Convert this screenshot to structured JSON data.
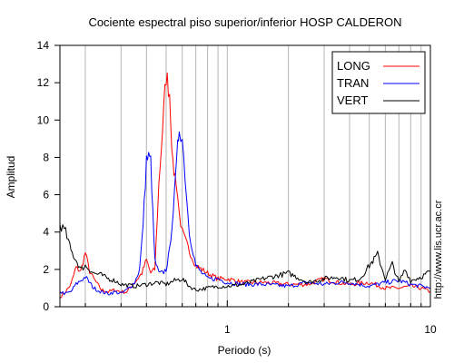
{
  "chart_data": {
    "type": "line",
    "title": "Cociente espectral piso superior/inferior  HOSP CALDERON",
    "xlabel": "Periodo (s)",
    "ylabel": "Amplitud",
    "xscale": "log",
    "xlim": [
      0.15,
      10
    ],
    "ylim": [
      0,
      14
    ],
    "x_tick_labels": [
      {
        "value": 1,
        "label": "1"
      },
      {
        "value": 10,
        "label": "10"
      }
    ],
    "y_ticks": [
      0,
      2,
      4,
      6,
      8,
      10,
      12,
      14
    ],
    "grid": "vertical",
    "legend_position": "top-right",
    "side_note": "http://www.lis.ucr.ac.cr",
    "series": [
      {
        "name": "LONG",
        "color": "#ff0000",
        "points": [
          [
            0.15,
            0.5
          ],
          [
            0.16,
            0.8
          ],
          [
            0.17,
            1.2
          ],
          [
            0.18,
            2.1
          ],
          [
            0.19,
            1.9
          ],
          [
            0.2,
            2.9
          ],
          [
            0.21,
            1.9
          ],
          [
            0.22,
            1.5
          ],
          [
            0.24,
            0.9
          ],
          [
            0.26,
            0.8
          ],
          [
            0.28,
            0.9
          ],
          [
            0.3,
            0.8
          ],
          [
            0.32,
            0.8
          ],
          [
            0.35,
            1.3
          ],
          [
            0.38,
            1.8
          ],
          [
            0.4,
            2.5
          ],
          [
            0.42,
            1.8
          ],
          [
            0.44,
            2.0
          ],
          [
            0.46,
            6.5
          ],
          [
            0.48,
            9.5
          ],
          [
            0.5,
            12.4
          ],
          [
            0.52,
            11.5
          ],
          [
            0.54,
            7.5
          ],
          [
            0.56,
            6.8
          ],
          [
            0.58,
            5.0
          ],
          [
            0.6,
            4.0
          ],
          [
            0.65,
            3.0
          ],
          [
            0.7,
            2.2
          ],
          [
            0.75,
            2.0
          ],
          [
            0.8,
            1.8
          ],
          [
            0.9,
            1.5
          ],
          [
            1.0,
            1.5
          ],
          [
            1.2,
            1.3
          ],
          [
            1.5,
            1.3
          ],
          [
            2.0,
            1.2
          ],
          [
            2.5,
            1.2
          ],
          [
            3.0,
            1.5
          ],
          [
            3.5,
            1.3
          ],
          [
            4.0,
            1.2
          ],
          [
            5.0,
            1.3
          ],
          [
            6.0,
            1.0
          ],
          [
            7.0,
            1.0
          ],
          [
            8.0,
            1.1
          ],
          [
            9.0,
            1.0
          ],
          [
            10.0,
            0.8
          ]
        ]
      },
      {
        "name": "TRAN",
        "color": "#0000ff",
        "points": [
          [
            0.15,
            0.8
          ],
          [
            0.16,
            0.7
          ],
          [
            0.17,
            0.8
          ],
          [
            0.18,
            1.2
          ],
          [
            0.2,
            1.6
          ],
          [
            0.22,
            1.0
          ],
          [
            0.24,
            0.8
          ],
          [
            0.26,
            0.7
          ],
          [
            0.28,
            0.8
          ],
          [
            0.3,
            0.7
          ],
          [
            0.32,
            0.9
          ],
          [
            0.35,
            1.3
          ],
          [
            0.37,
            2.0
          ],
          [
            0.38,
            3.5
          ],
          [
            0.39,
            5.5
          ],
          [
            0.4,
            7.9
          ],
          [
            0.41,
            8.0
          ],
          [
            0.42,
            7.8
          ],
          [
            0.43,
            5.0
          ],
          [
            0.44,
            2.5
          ],
          [
            0.46,
            1.8
          ],
          [
            0.48,
            1.8
          ],
          [
            0.5,
            2.0
          ],
          [
            0.52,
            3.0
          ],
          [
            0.55,
            6.0
          ],
          [
            0.57,
            8.5
          ],
          [
            0.58,
            9.7
          ],
          [
            0.6,
            9.0
          ],
          [
            0.62,
            7.0
          ],
          [
            0.65,
            4.0
          ],
          [
            0.7,
            2.2
          ],
          [
            0.75,
            1.8
          ],
          [
            0.8,
            1.5
          ],
          [
            0.9,
            1.5
          ],
          [
            1.0,
            1.3
          ],
          [
            1.2,
            1.2
          ],
          [
            1.5,
            1.2
          ],
          [
            2.0,
            1.1
          ],
          [
            2.5,
            1.3
          ],
          [
            3.0,
            1.2
          ],
          [
            3.5,
            1.3
          ],
          [
            4.0,
            1.3
          ],
          [
            5.0,
            1.1
          ],
          [
            6.0,
            1.3
          ],
          [
            7.0,
            1.4
          ],
          [
            8.0,
            1.2
          ],
          [
            9.0,
            1.1
          ],
          [
            10.0,
            1.0
          ]
        ]
      },
      {
        "name": "VERT",
        "color": "#000000",
        "points": [
          [
            0.15,
            4.4
          ],
          [
            0.16,
            4.0
          ],
          [
            0.17,
            3.0
          ],
          [
            0.18,
            2.5
          ],
          [
            0.19,
            2.0
          ],
          [
            0.2,
            2.2
          ],
          [
            0.22,
            1.8
          ],
          [
            0.24,
            1.7
          ],
          [
            0.26,
            1.5
          ],
          [
            0.28,
            1.4
          ],
          [
            0.3,
            1.2
          ],
          [
            0.35,
            1.1
          ],
          [
            0.4,
            1.2
          ],
          [
            0.45,
            1.3
          ],
          [
            0.5,
            1.2
          ],
          [
            0.55,
            1.4
          ],
          [
            0.6,
            1.5
          ],
          [
            0.65,
            1.1
          ],
          [
            0.7,
            0.9
          ],
          [
            0.8,
            1.0
          ],
          [
            0.9,
            1.1
          ],
          [
            1.0,
            1.1
          ],
          [
            1.2,
            1.2
          ],
          [
            1.5,
            1.5
          ],
          [
            2.0,
            1.8
          ],
          [
            2.5,
            1.3
          ],
          [
            3.0,
            1.5
          ],
          [
            3.5,
            1.6
          ],
          [
            4.0,
            1.4
          ],
          [
            4.5,
            1.5
          ],
          [
            5.0,
            2.2
          ],
          [
            5.5,
            2.8
          ],
          [
            6.0,
            1.5
          ],
          [
            6.5,
            2.3
          ],
          [
            7.0,
            1.3
          ],
          [
            7.5,
            2.0
          ],
          [
            8.0,
            1.4
          ],
          [
            9.0,
            1.6
          ],
          [
            10.0,
            1.9
          ]
        ]
      }
    ]
  }
}
